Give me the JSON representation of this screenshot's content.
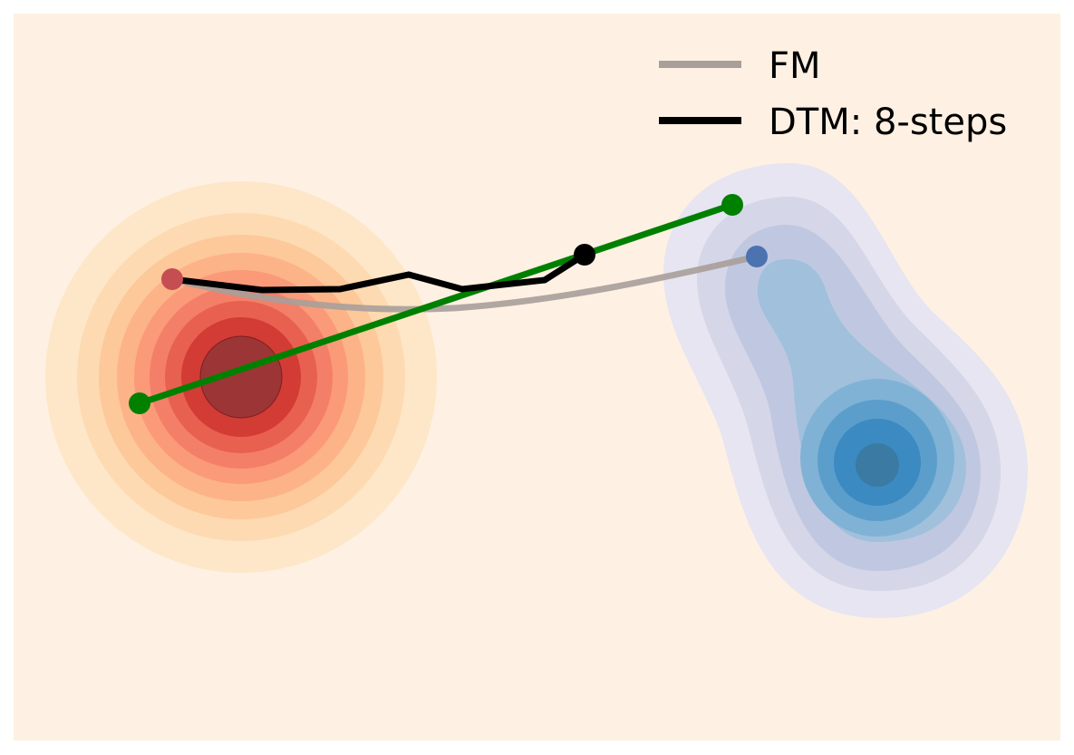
{
  "legend": {
    "items": [
      {
        "label": "FM",
        "color": "#a89f9a"
      },
      {
        "label": "DTM: 8-steps",
        "color": "#000000"
      }
    ]
  },
  "colors": {
    "background": "#fef1e3",
    "source_point": "#c44e52",
    "target_point": "#4c72b0",
    "straight_path": "#008000",
    "dtm_path": "#000000",
    "fm_path": "#a89f9a"
  }
}
